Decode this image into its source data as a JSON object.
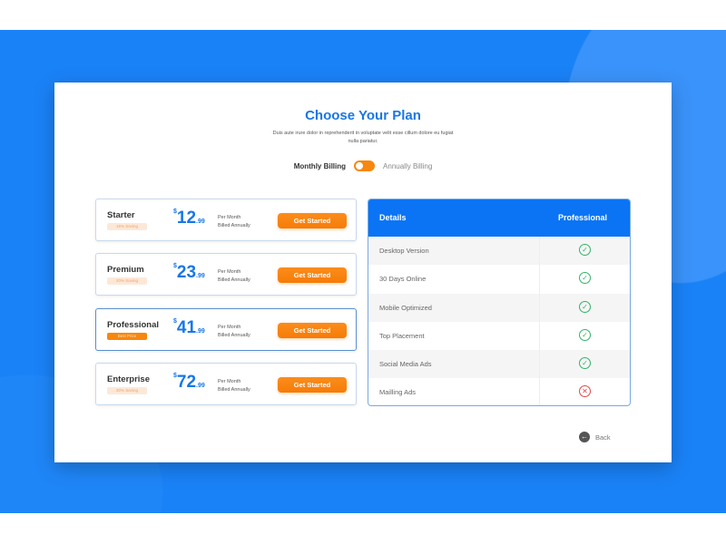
{
  "colors": {
    "accent": "#1877e6",
    "cta": "#f7870f",
    "background": "#1a82f7",
    "check": "#31b36a",
    "cross": "#e04848"
  },
  "header": {
    "title": "Choose Your Plan",
    "subtitle": "Duis aute irure dolor in reprehenderit in voluptate velit esse cillum dolore eu fugiat nulla pariatur."
  },
  "billing": {
    "monthly": "Monthly Billing",
    "annually": "Annually Billing",
    "toggle_state": "monthly"
  },
  "plans": [
    {
      "name": "Starter",
      "badge": "15% Saving",
      "currency": "$",
      "price_int": "12",
      "price_dec": ".99",
      "per": "Per Month",
      "billed": "Billed Annually",
      "cta": "Get Started"
    },
    {
      "name": "Premium",
      "badge": "20% Saving",
      "currency": "$",
      "price_int": "23",
      "price_dec": ".99",
      "per": "Per Month",
      "billed": "Billed Annually",
      "cta": "Get Started"
    },
    {
      "name": "Professional",
      "badge": "Best Price",
      "currency": "$",
      "price_int": "41",
      "price_dec": ".99",
      "per": "Per Month",
      "billed": "Billed Annually",
      "cta": "Get Started",
      "selected": true
    },
    {
      "name": "Enterprise",
      "badge": "30% Saving",
      "currency": "$",
      "price_int": "72",
      "price_dec": ".99",
      "per": "Per Month",
      "billed": "Billed Annually",
      "cta": "Get Started"
    }
  ],
  "details": {
    "col1": "Details",
    "col2": "Professional",
    "rows": [
      {
        "label": "Desktop Version",
        "included": true,
        "icon": "check-circle-icon"
      },
      {
        "label": "30 Days Online",
        "included": true,
        "icon": "check-circle-icon"
      },
      {
        "label": "Mobile Optimized",
        "included": true,
        "icon": "check-circle-icon"
      },
      {
        "label": "Top Placement",
        "included": true,
        "icon": "check-circle-icon"
      },
      {
        "label": "Social Media Ads",
        "included": true,
        "icon": "check-circle-icon"
      },
      {
        "label": "Mailling Ads",
        "included": false,
        "icon": "x-circle-icon"
      }
    ]
  },
  "back": {
    "label": "Back",
    "icon": "arrow-left-circle-icon"
  }
}
